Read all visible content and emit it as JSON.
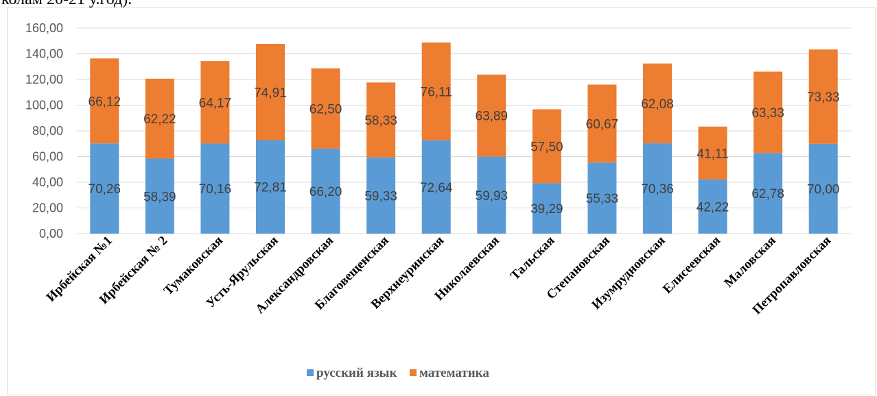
{
  "top_text": "колам 20-21 у.год).",
  "chart_data": {
    "type": "bar",
    "stacked": true,
    "categories": [
      "Ирбейская №1",
      "Ирбейская № 2",
      "Тумаковская",
      "Усть-Ярульская",
      "Александровская",
      "Благовещенская",
      "Верхнеуринская",
      "Николаевская",
      "Тальская",
      "Степановская",
      "Изумрудновская",
      "Елисеевская",
      "Маловская",
      "Петропавловская"
    ],
    "series": [
      {
        "name": "русский язык",
        "color": "#5b9bd5",
        "values": [
          70.26,
          58.39,
          70.16,
          72.81,
          66.2,
          59.33,
          72.64,
          59.93,
          39.29,
          55.33,
          70.36,
          42.22,
          62.78,
          70.0
        ],
        "labels": [
          "70,26",
          "58,39",
          "70,16",
          "72,81",
          "66,20",
          "59,33",
          "72,64",
          "59,93",
          "39,29",
          "55,33",
          "70,36",
          "42,22",
          "62,78",
          "70,00"
        ]
      },
      {
        "name": "математика",
        "color": "#ed7d31",
        "values": [
          66.12,
          62.22,
          64.17,
          74.91,
          62.5,
          58.33,
          76.11,
          63.89,
          57.5,
          60.67,
          62.08,
          41.11,
          63.33,
          73.33
        ],
        "labels": [
          "66,12",
          "62,22",
          "64,17",
          "74,91",
          "62,50",
          "58,33",
          "76,11",
          "63,89",
          "57,50",
          "60,67",
          "62,08",
          "41,11",
          "63,33",
          "73,33"
        ]
      }
    ],
    "ylim": [
      0,
      160
    ],
    "yticks": [
      "0,00",
      "20,00",
      "40,00",
      "60,00",
      "80,00",
      "100,00",
      "120,00",
      "140,00",
      "160,00"
    ],
    "grid": true,
    "legend_position": "bottom"
  }
}
